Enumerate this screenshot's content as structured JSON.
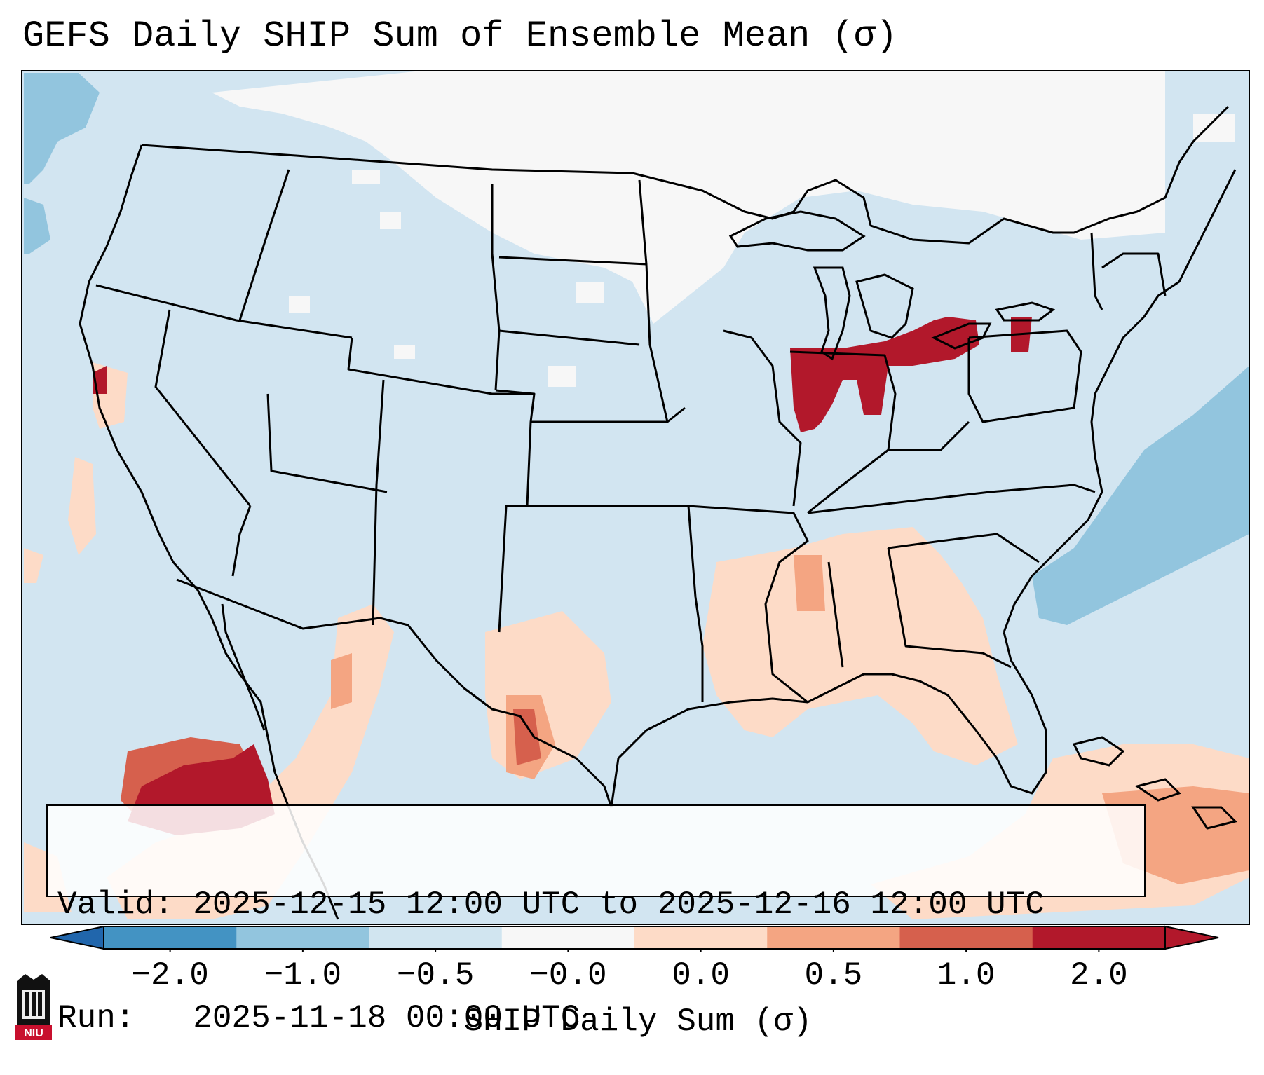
{
  "title": "GEFS Daily SHIP Sum of Ensemble Mean (σ)",
  "info": {
    "valid_label": "Valid:",
    "valid_value": "2025-12-15 12:00 UTC to 2025-12-16 12:00 UTC",
    "run_label": "Run:",
    "run_value": "2025-11-18 00:00 UTC"
  },
  "colorbar": {
    "label": "SHIP Daily Sum (σ)",
    "ticks": [
      "−2.0",
      "−1.0",
      "−0.5",
      "−0.0",
      "0.0",
      "0.5",
      "1.0",
      "2.0"
    ],
    "colors": [
      "#4393c3",
      "#92c5de",
      "#d1e5f0",
      "#f7f7f7",
      "#fddbc7",
      "#f4a582",
      "#d6604d",
      "#b2182b"
    ],
    "extend_low_color": "#2166ac",
    "extend_high_color": "#b2182b"
  },
  "map": {
    "background_color": "#d2e5f1",
    "region": "CONUS"
  },
  "logo": {
    "text": "NIU",
    "icon": "niu-logo-icon"
  }
}
